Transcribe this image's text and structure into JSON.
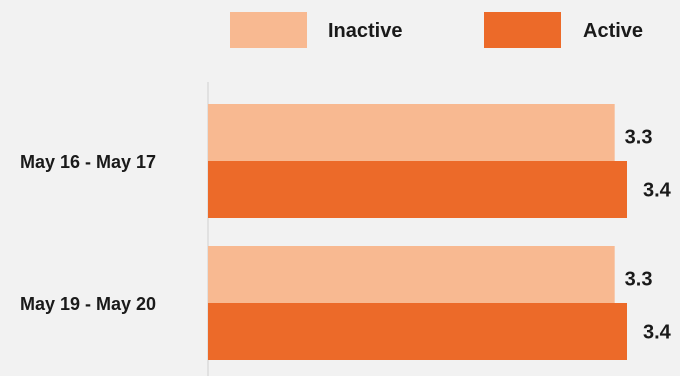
{
  "chart_data": {
    "type": "bar",
    "orientation": "horizontal",
    "categories": [
      "May 16 - May 17",
      "May 19 - May 20"
    ],
    "series": [
      {
        "name": "Inactive",
        "values": [
          3.3,
          3.3
        ],
        "color": "#f8b991"
      },
      {
        "name": "Active",
        "values": [
          3.4,
          3.4
        ],
        "color": "#ec6a29"
      }
    ],
    "data_labels": [
      [
        "3.3",
        "3.3"
      ],
      [
        "3.4",
        "3.4"
      ]
    ],
    "xlim": [
      0,
      3.4
    ],
    "grid": false,
    "legend_position": "top-center"
  }
}
